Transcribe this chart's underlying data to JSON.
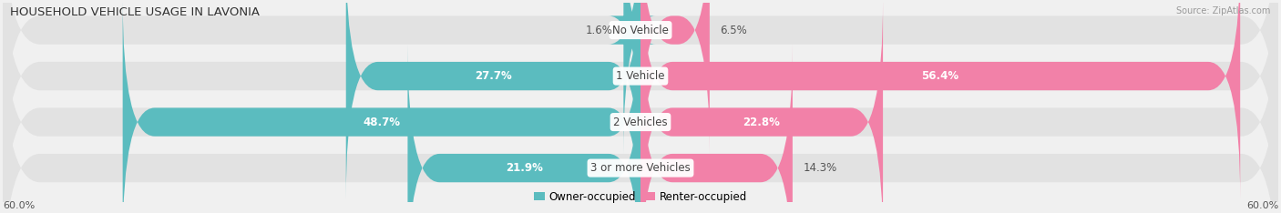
{
  "title": "HOUSEHOLD VEHICLE USAGE IN LAVONIA",
  "source": "Source: ZipAtlas.com",
  "categories": [
    "No Vehicle",
    "1 Vehicle",
    "2 Vehicles",
    "3 or more Vehicles"
  ],
  "owner_values": [
    1.6,
    27.7,
    48.7,
    21.9
  ],
  "renter_values": [
    6.5,
    56.4,
    22.8,
    14.3
  ],
  "owner_color": "#5bbcbf",
  "renter_color": "#f281a8",
  "owner_label": "Owner-occupied",
  "renter_label": "Renter-occupied",
  "axis_max": 60.0,
  "x_tick_label": "60.0%",
  "bg_color": "#f0f0f0",
  "bar_bg_color": "#e2e2e2",
  "bar_height": 0.62,
  "title_fontsize": 9.5,
  "label_fontsize": 8.5,
  "tick_fontsize": 8,
  "inside_label_threshold": 15
}
